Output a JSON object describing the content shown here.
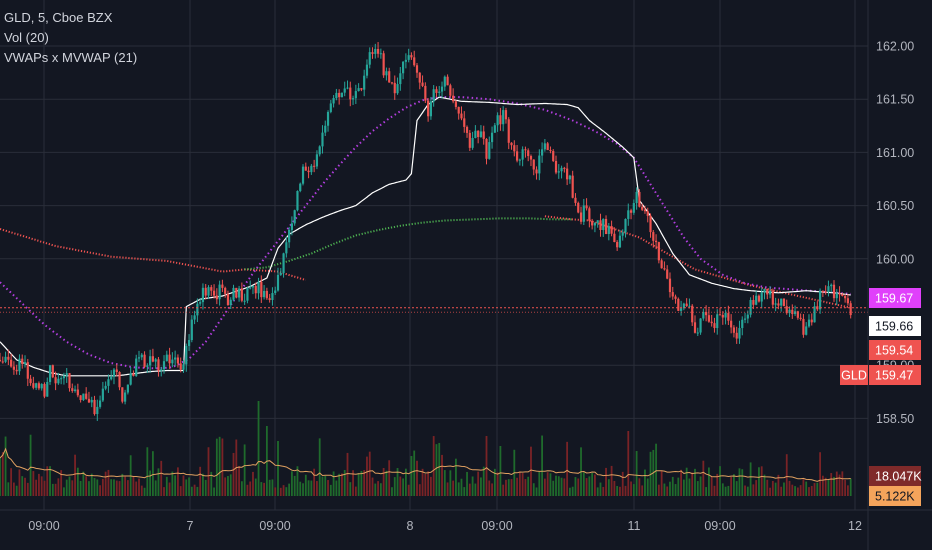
{
  "legend": {
    "symbol_line": "GLD, 5, Cboe BZX",
    "volume_line": "Vol (20)",
    "indicator_line": "VWAPs x MVWAP (21)"
  },
  "colors": {
    "background": "#131722",
    "grid": "#2a2e39",
    "candle_up": "#26a69a",
    "candle_down": "#ef5350",
    "vwap": "#ffffff",
    "mvwap": "#b33ee0",
    "green_vwap": "#4caf50",
    "red_vwap": "#ef5350",
    "volume_up": "#1f6b2c",
    "volume_down": "#7a2326",
    "volume_ma": "#e0a060"
  },
  "chart_data": {
    "type": "candlestick",
    "symbol": "GLD",
    "interval": "5",
    "exchange": "Cboe BZX",
    "price_axis": {
      "ticks": [
        "162.00",
        "161.50",
        "161.00",
        "160.50",
        "160.00",
        "159.00",
        "158.50"
      ],
      "range": [
        158.2,
        162.2
      ]
    },
    "time_axis": {
      "ticks": [
        "09:00",
        "7",
        "09:00",
        "8",
        "09:00",
        "11",
        "09:00",
        "12"
      ]
    },
    "price_tags": [
      {
        "label": "",
        "value": "159.67",
        "color": "#e040fb",
        "text_color": "#ffffff"
      },
      {
        "label": "",
        "value": "159.66",
        "color": "#ffffff",
        "text_color": "#131722"
      },
      {
        "label": "",
        "value": "159.54",
        "color": "#ef5350",
        "text_color": "#ffffff"
      },
      {
        "label": "GLD",
        "value": "159.47",
        "color": "#ef5350",
        "text_color": "#ffffff"
      },
      {
        "label": "",
        "value": "18.047K",
        "color": "#7f2a2a",
        "text_color": "#ffffff"
      },
      {
        "label": "",
        "value": "5.122K",
        "color": "#f5a45b",
        "text_color": "#131722"
      }
    ],
    "price_path": [
      [
        0,
        159.05
      ],
      [
        8,
        159.0
      ],
      [
        12,
        158.85
      ],
      [
        16,
        158.75
      ],
      [
        18,
        158.95
      ],
      [
        20,
        158.85
      ],
      [
        24,
        158.9
      ],
      [
        26,
        158.7
      ],
      [
        30,
        158.75
      ],
      [
        34,
        158.6
      ],
      [
        38,
        158.85
      ],
      [
        42,
        158.95
      ],
      [
        44,
        158.7
      ],
      [
        47,
        158.9
      ],
      [
        49,
        159.0
      ],
      [
        52,
        159.05
      ],
      [
        55,
        159.0
      ],
      [
        58,
        159.0
      ],
      [
        60,
        159.1
      ],
      [
        63,
        159.05
      ],
      [
        65,
        159.0
      ],
      [
        67,
        159.15
      ],
      [
        70,
        159.5
      ],
      [
        73,
        159.7
      ],
      [
        76,
        159.65
      ],
      [
        79,
        159.7
      ],
      [
        82,
        159.6
      ],
      [
        85,
        159.7
      ],
      [
        88,
        159.65
      ],
      [
        91,
        159.75
      ],
      [
        94,
        159.7
      ],
      [
        97,
        159.65
      ],
      [
        100,
        159.8
      ],
      [
        103,
        160.1
      ],
      [
        106,
        160.5
      ],
      [
        109,
        160.8
      ],
      [
        112,
        160.85
      ],
      [
        115,
        161.1
      ],
      [
        118,
        161.4
      ],
      [
        121,
        161.55
      ],
      [
        124,
        161.6
      ],
      [
        127,
        161.5
      ],
      [
        130,
        161.6
      ],
      [
        133,
        161.9
      ],
      [
        136,
        161.95
      ],
      [
        139,
        161.7
      ],
      [
        142,
        161.55
      ],
      [
        145,
        161.8
      ],
      [
        148,
        161.95
      ],
      [
        151,
        161.7
      ],
      [
        154,
        161.4
      ],
      [
        157,
        161.6
      ],
      [
        160,
        161.7
      ],
      [
        163,
        161.5
      ],
      [
        166,
        161.3
      ],
      [
        169,
        161.1
      ],
      [
        172,
        161.2
      ],
      [
        175,
        161.0
      ],
      [
        178,
        161.3
      ],
      [
        181,
        161.35
      ],
      [
        184,
        161.05
      ],
      [
        187,
        160.95
      ],
      [
        190,
        161.0
      ],
      [
        193,
        160.85
      ],
      [
        196,
        161.05
      ],
      [
        199,
        160.9
      ],
      [
        202,
        160.8
      ],
      [
        205,
        160.75
      ],
      [
        208,
        160.4
      ],
      [
        211,
        160.45
      ],
      [
        214,
        160.3
      ],
      [
        217,
        160.35
      ],
      [
        220,
        160.2
      ],
      [
        223,
        160.15
      ],
      [
        226,
        160.4
      ],
      [
        229,
        160.6
      ],
      [
        232,
        160.45
      ],
      [
        235,
        160.2
      ],
      [
        238,
        159.95
      ],
      [
        241,
        159.7
      ],
      [
        244,
        159.55
      ],
      [
        247,
        159.6
      ],
      [
        250,
        159.3
      ],
      [
        253,
        159.45
      ],
      [
        256,
        159.35
      ],
      [
        259,
        159.5
      ],
      [
        262,
        159.4
      ],
      [
        265,
        159.3
      ],
      [
        268,
        159.5
      ],
      [
        271,
        159.6
      ],
      [
        274,
        159.7
      ],
      [
        277,
        159.65
      ],
      [
        280,
        159.6
      ],
      [
        283,
        159.5
      ],
      [
        286,
        159.45
      ],
      [
        289,
        159.35
      ],
      [
        292,
        159.45
      ],
      [
        295,
        159.65
      ],
      [
        298,
        159.7
      ],
      [
        301,
        159.68
      ],
      [
        304,
        159.62
      ],
      [
        306,
        159.47
      ]
    ],
    "series": [
      {
        "values": [
          [
            0,
            159.22
          ],
          [
            6,
            159.05
          ],
          [
            12,
            158.98
          ],
          [
            18,
            158.93
          ],
          [
            24,
            158.9
          ],
          [
            30,
            158.9
          ],
          [
            36,
            158.9
          ],
          [
            42,
            158.9
          ],
          [
            48,
            158.92
          ],
          [
            54,
            158.94
          ],
          [
            60,
            158.95
          ],
          [
            66,
            158.95
          ],
          [
            67,
            159.55
          ],
          [
            72,
            159.62
          ],
          [
            80,
            159.65
          ],
          [
            90,
            159.74
          ],
          [
            96,
            159.82
          ],
          [
            100,
            160.1
          ],
          [
            104,
            160.23
          ],
          [
            110,
            160.32
          ],
          [
            116,
            160.39
          ],
          [
            122,
            160.45
          ],
          [
            128,
            160.5
          ],
          [
            134,
            160.62
          ],
          [
            140,
            160.7
          ],
          [
            146,
            160.74
          ],
          [
            148,
            160.8
          ],
          [
            150,
            161.3
          ],
          [
            154,
            161.45
          ],
          [
            158,
            161.52
          ],
          [
            166,
            161.48
          ],
          [
            176,
            161.47
          ],
          [
            186,
            161.45
          ],
          [
            196,
            161.46
          ],
          [
            204,
            161.45
          ],
          [
            208,
            161.42
          ],
          [
            212,
            161.3
          ],
          [
            218,
            161.18
          ],
          [
            224,
            161.05
          ],
          [
            228,
            160.95
          ],
          [
            230,
            160.55
          ],
          [
            236,
            160.33
          ],
          [
            242,
            160.05
          ],
          [
            248,
            159.85
          ],
          [
            256,
            159.77
          ],
          [
            264,
            159.72
          ],
          [
            270,
            159.7
          ],
          [
            280,
            159.68
          ],
          [
            290,
            159.7
          ],
          [
            300,
            159.68
          ],
          [
            306,
            159.66
          ]
        ]
      },
      {
        "values": [
          [
            0,
            159.78
          ],
          [
            8,
            159.58
          ],
          [
            16,
            159.38
          ],
          [
            24,
            159.22
          ],
          [
            32,
            159.1
          ],
          [
            40,
            159.02
          ],
          [
            48,
            158.98
          ],
          [
            56,
            158.97
          ],
          [
            62,
            158.98
          ],
          [
            68,
            159.06
          ],
          [
            74,
            159.22
          ],
          [
            80,
            159.45
          ],
          [
            86,
            159.68
          ],
          [
            92,
            159.9
          ],
          [
            98,
            160.1
          ],
          [
            104,
            160.3
          ],
          [
            110,
            160.5
          ],
          [
            116,
            160.7
          ],
          [
            122,
            160.88
          ],
          [
            128,
            161.05
          ],
          [
            134,
            161.2
          ],
          [
            140,
            161.32
          ],
          [
            146,
            161.42
          ],
          [
            152,
            161.49
          ],
          [
            158,
            161.52
          ],
          [
            166,
            161.52
          ],
          [
            176,
            161.5
          ],
          [
            186,
            161.46
          ],
          [
            196,
            161.4
          ],
          [
            206,
            161.3
          ],
          [
            214,
            161.2
          ],
          [
            222,
            161.08
          ],
          [
            228,
            160.95
          ],
          [
            234,
            160.7
          ],
          [
            240,
            160.45
          ],
          [
            246,
            160.2
          ],
          [
            252,
            160.0
          ],
          [
            260,
            159.85
          ],
          [
            268,
            159.77
          ],
          [
            276,
            159.73
          ],
          [
            286,
            159.71
          ],
          [
            296,
            159.69
          ],
          [
            306,
            159.67
          ]
        ]
      },
      {
        "values": [
          [
            88,
            159.9
          ],
          [
            96,
            159.92
          ],
          [
            104,
            159.98
          ],
          [
            112,
            160.05
          ],
          [
            120,
            160.14
          ],
          [
            128,
            160.22
          ],
          [
            136,
            160.27
          ],
          [
            144,
            160.31
          ],
          [
            152,
            160.34
          ],
          [
            160,
            160.36
          ],
          [
            170,
            160.37
          ],
          [
            180,
            160.38
          ],
          [
            190,
            160.38
          ],
          [
            200,
            160.37
          ],
          [
            206,
            160.37
          ]
        ]
      },
      {
        "values": [
          [
            0,
            160.28
          ],
          [
            20,
            160.12
          ],
          [
            40,
            160.02
          ],
          [
            60,
            159.98
          ],
          [
            80,
            159.88
          ],
          [
            88,
            159.9
          ],
          [
            100,
            159.88
          ],
          [
            110,
            159.8
          ]
        ],
        "values2": [
          [
            196,
            160.4
          ],
          [
            206,
            160.37
          ],
          [
            212,
            160.36
          ],
          [
            230,
            160.2
          ],
          [
            250,
            159.9
          ],
          [
            270,
            159.75
          ],
          [
            306,
            159.54
          ]
        ]
      }
    ]
  }
}
